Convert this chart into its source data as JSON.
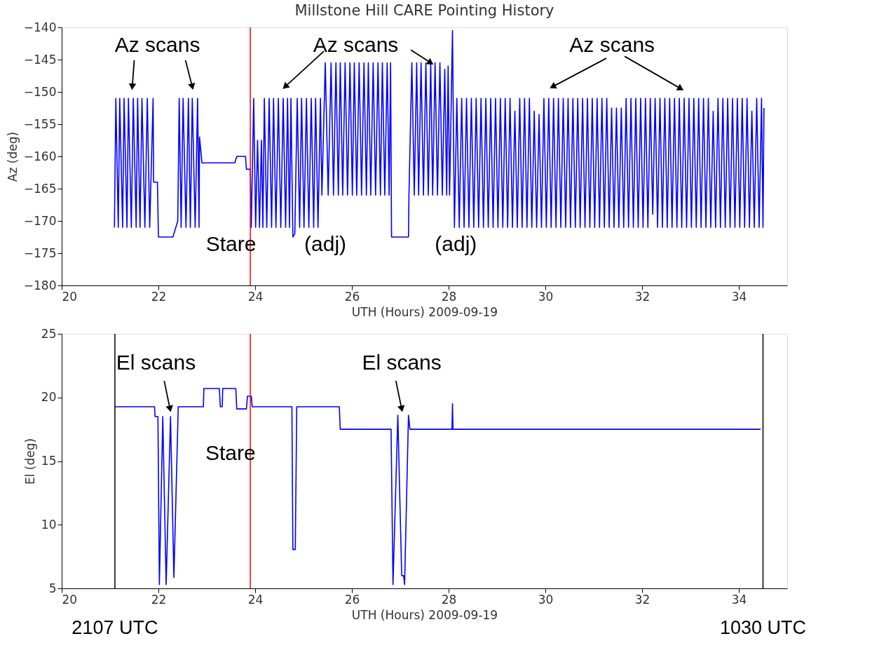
{
  "chart_data": [
    {
      "type": "line",
      "title": "Millstone Hill  CARE  Pointing History",
      "xlabel": "UTH (Hours) 2009-09-19",
      "ylabel": "Az (deg)",
      "xlim": [
        20,
        35
      ],
      "xticks": [
        20,
        22,
        24,
        26,
        28,
        30,
        32,
        34
      ],
      "ylim": [
        -180,
        -140
      ],
      "yticks": [
        -180,
        -175,
        -170,
        -165,
        -160,
        -155,
        -150,
        -145,
        -140
      ],
      "grid": false,
      "legend": false,
      "series": [
        {
          "color": "#0000ff",
          "x": [
            21.09,
            21.12,
            21.17,
            21.2,
            21.26,
            21.29,
            21.35,
            21.38,
            21.44,
            21.48,
            21.54,
            21.57,
            21.62,
            21.66,
            21.72,
            21.77,
            21.82,
            21.89,
            21.9,
            21.98,
            22.0,
            22.3,
            22.4,
            22.43,
            22.47,
            22.51,
            22.57,
            22.62,
            22.66,
            22.7,
            22.76,
            22.81,
            22.84,
            22.85,
            22.9,
            23.58,
            23.62,
            23.8,
            23.82,
            23.9,
            23.92,
            23.97,
            24.01,
            24.05,
            24.09,
            24.13,
            24.16,
            24.19,
            24.24,
            24.29,
            24.34,
            24.38,
            24.43,
            24.48,
            24.53,
            24.58,
            24.63,
            24.67,
            24.71,
            24.74,
            24.78,
            24.82,
            24.87,
            24.92,
            24.96,
            25.01,
            25.06,
            25.11,
            25.16,
            25.21,
            25.25,
            25.3,
            25.35,
            25.38,
            25.45,
            25.51,
            25.57,
            25.62,
            25.67,
            25.72,
            25.76,
            25.81,
            25.86,
            25.91,
            25.96,
            26.01,
            26.05,
            26.1,
            26.15,
            26.2,
            26.25,
            26.3,
            26.34,
            26.39,
            26.44,
            26.49,
            26.54,
            26.59,
            26.63,
            26.68,
            26.73,
            26.77,
            26.8,
            26.82,
            27.17,
            27.18,
            27.24,
            27.29,
            27.34,
            27.38,
            27.43,
            27.48,
            27.53,
            27.58,
            27.63,
            27.67,
            27.72,
            27.77,
            27.82,
            27.87,
            27.92,
            27.96,
            27.99,
            28.02,
            28.08,
            28.12,
            28.17,
            28.22,
            28.27,
            28.32,
            28.37,
            28.42,
            28.47,
            28.52,
            28.57,
            28.62,
            28.67,
            28.72,
            28.77,
            28.82,
            28.87,
            28.92,
            28.97,
            29.02,
            29.07,
            29.12,
            29.17,
            29.22,
            29.27,
            29.32,
            29.37,
            29.42,
            29.47,
            29.52,
            29.57,
            29.62,
            29.67,
            29.72,
            29.77,
            29.82,
            29.87,
            29.92,
            29.97,
            30.02,
            30.07,
            30.12,
            30.17,
            30.22,
            30.27,
            30.32,
            30.37,
            30.42,
            30.47,
            30.52,
            30.57,
            30.62,
            30.67,
            30.72,
            30.77,
            30.82,
            30.87,
            30.92,
            30.97,
            31.02,
            31.07,
            31.12,
            31.17,
            31.22,
            31.27,
            31.32,
            31.37,
            31.42,
            31.47,
            31.52,
            31.57,
            31.62,
            31.67,
            31.72,
            31.77,
            31.82,
            31.87,
            31.92,
            31.97,
            32.02,
            32.07,
            32.12,
            32.17,
            32.22,
            32.27,
            32.32,
            32.37,
            32.42,
            32.47,
            32.52,
            32.57,
            32.62,
            32.67,
            32.72,
            32.77,
            32.82,
            32.87,
            32.92,
            32.97,
            33.02,
            33.07,
            33.12,
            33.17,
            33.22,
            33.27,
            33.32,
            33.37,
            33.42,
            33.47,
            33.52,
            33.57,
            33.62,
            33.67,
            33.72,
            33.77,
            33.82,
            33.87,
            33.92,
            33.97,
            34.02,
            34.07,
            34.12,
            34.17,
            34.22,
            34.27,
            34.32,
            34.37,
            34.42,
            34.47,
            34.5,
            34.52
          ],
          "values": [
            -171,
            -151,
            -171,
            -151,
            -171,
            -151,
            -171,
            -151,
            -171,
            -151,
            -171,
            -151,
            -171,
            -151,
            -171,
            -151,
            -171,
            -151,
            -164,
            -164,
            -172.5,
            -172.5,
            -170,
            -151,
            -171,
            -151,
            -171,
            -151,
            -171,
            -151,
            -171,
            -151,
            -171,
            -157,
            -161,
            -161,
            -160,
            -160,
            -162,
            -162,
            -171,
            -151,
            -171,
            -157.5,
            -171,
            -157.5,
            -171,
            -151,
            -171,
            -151,
            -171,
            -151,
            -171,
            -151,
            -171,
            -151,
            -171,
            -151,
            -171,
            -151,
            -172.5,
            -172,
            -151,
            -171,
            -151,
            -171,
            -151,
            -171,
            -151,
            -171,
            -151,
            -171,
            -151,
            -166,
            -145.5,
            -166,
            -145.5,
            -166,
            -145.5,
            -166,
            -145.5,
            -166,
            -145.5,
            -166,
            -145.5,
            -166,
            -145.5,
            -166,
            -145.5,
            -166,
            -145.5,
            -166,
            -145.5,
            -166,
            -145.5,
            -166,
            -145.5,
            -166,
            -145.5,
            -166,
            -145.5,
            -166,
            -145.5,
            -172.5,
            -172.5,
            -166,
            -145.5,
            -166,
            -145.5,
            -166,
            -145.5,
            -166,
            -145.5,
            -166,
            -145.5,
            -166,
            -145.5,
            -166,
            -145.5,
            -166,
            -146.5,
            -166,
            -146,
            -166,
            -140.5,
            -171,
            -151,
            -171,
            -151,
            -171,
            -151,
            -171,
            -151,
            -171,
            -151,
            -171,
            -151,
            -171,
            -151,
            -171,
            -151,
            -171,
            -151,
            -171,
            -151,
            -171,
            -151,
            -171,
            -151,
            -171,
            -153,
            -171,
            -151,
            -171,
            -151,
            -171,
            -151,
            -171,
            -153,
            -171,
            -153.5,
            -171,
            -151,
            -171,
            -151,
            -171,
            -151,
            -171,
            -151,
            -171,
            -151,
            -171,
            -151,
            -171,
            -151,
            -171,
            -151,
            -171,
            -151,
            -171,
            -151,
            -171,
            -151,
            -171,
            -151,
            -171,
            -151,
            -171,
            -151,
            -171,
            -152.5,
            -171,
            -152.5,
            -171,
            -152.5,
            -171,
            -151,
            -171,
            -151,
            -171,
            -151,
            -171,
            -151,
            -171,
            -151,
            -171,
            -151,
            -169,
            -151,
            -171,
            -151,
            -171,
            -151,
            -171,
            -151,
            -171,
            -151,
            -171,
            -151,
            -171,
            -151,
            -171,
            -151,
            -171,
            -151,
            -171,
            -151,
            -171,
            -151,
            -171,
            -151,
            -171,
            -153,
            -171,
            -151,
            -171,
            -151,
            -171,
            -151,
            -171,
            -151,
            -171,
            -151,
            -171,
            -151,
            -171,
            -151,
            -171,
            -153,
            -171,
            -151,
            -171,
            -151,
            -171,
            -152.5
          ]
        }
      ],
      "ref_lines": [
        {
          "axis": "x",
          "value": 23.9,
          "color": "#ff0000"
        }
      ],
      "annotations": [
        "Az scans",
        {
          "text": "Az scans",
          "x": 27.63,
          "y": -145.5
        },
        "Az scans",
        "Stare",
        "(adj)",
        "(adj)"
      ]
    },
    {
      "type": "line",
      "xlabel": "UTH (Hours) 2009-09-19",
      "ylabel": "El (deg)",
      "xlim": [
        20,
        35
      ],
      "xticks": [
        20,
        22,
        24,
        26,
        28,
        30,
        32,
        34
      ],
      "ylim": [
        5,
        25
      ],
      "yticks": [
        5,
        10,
        15,
        20,
        25
      ],
      "grid": false,
      "legend": false,
      "series": [
        {
          "color": "#0000ff",
          "x": [
            21.1,
            21.92,
            21.93,
            21.99,
            22.02,
            22.09,
            22.16,
            22.25,
            22.32,
            22.41,
            22.93,
            22.94,
            23.26,
            23.28,
            23.32,
            23.33,
            23.6,
            23.62,
            23.82,
            23.84,
            23.92,
            23.94,
            24.76,
            24.78,
            24.83,
            24.86,
            25.74,
            25.76,
            26.81,
            26.85,
            26.95,
            27.03,
            27.07,
            27.09,
            27.17,
            27.2,
            28.07,
            28.08,
            28.09,
            34.45
          ],
          "values": [
            19.27,
            19.27,
            18.5,
            18.5,
            5.3,
            18.5,
            5.3,
            18.5,
            5.85,
            19.27,
            19.27,
            20.7,
            20.7,
            19.27,
            19.27,
            20.7,
            20.7,
            19.1,
            19.1,
            20.1,
            20.1,
            19.27,
            19.27,
            8.05,
            8.05,
            19.27,
            19.27,
            17.5,
            17.5,
            5.3,
            18.6,
            6.0,
            6.0,
            5.3,
            18.6,
            17.5,
            17.5,
            19.5,
            17.5,
            17.5
          ]
        }
      ],
      "ref_lines": [
        {
          "axis": "x",
          "value": 23.9,
          "color": "#ff0000"
        },
        {
          "axis": "x",
          "value": 21.1,
          "color": "#000000",
          "label": "2107 UTC"
        },
        {
          "axis": "x",
          "value": 34.5,
          "color": "#000000",
          "label": "1030 UTC"
        }
      ],
      "annotations": [
        "El scans",
        "El scans",
        "Stare"
      ]
    }
  ]
}
